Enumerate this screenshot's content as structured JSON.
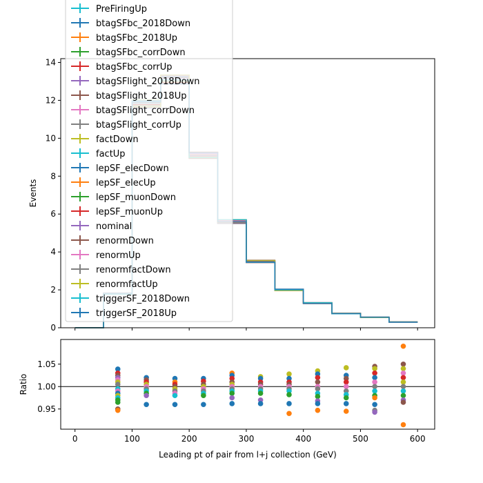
{
  "chart_data": [
    {
      "type": "line",
      "panel": "main",
      "drawstyle": "steps",
      "ylabel": "Events",
      "xlim": [
        -25,
        630
      ],
      "ylim": [
        0,
        14.2
      ],
      "xticks": [
        0,
        100,
        200,
        300,
        400,
        500,
        600
      ],
      "yticks": [
        0,
        2,
        4,
        6,
        8,
        10,
        12,
        14
      ],
      "bin_edges": [
        0,
        50,
        100,
        150,
        200,
        250,
        300,
        350,
        400,
        450,
        500,
        550,
        600
      ],
      "bin_values": [
        0.0,
        1.8,
        11.8,
        13.1,
        9.1,
        5.6,
        3.5,
        2.0,
        1.3,
        0.75,
        0.55,
        0.3
      ],
      "legend_location": "upper-left (extends above axes)",
      "legend": [
        {
          "name": "PreFiringUp",
          "color": "#17becf"
        },
        {
          "name": "btagSFbc_2018Down",
          "color": "#1f77b4"
        },
        {
          "name": "btagSFbc_2018Up",
          "color": "#ff7f0e"
        },
        {
          "name": "btagSFbc_corrDown",
          "color": "#2ca02c"
        },
        {
          "name": "btagSFbc_corrUp",
          "color": "#d62728"
        },
        {
          "name": "btagSFlight_2018Down",
          "color": "#9467bd"
        },
        {
          "name": "btagSFlight_2018Up",
          "color": "#8c564b"
        },
        {
          "name": "btagSFlight_corrDown",
          "color": "#e377c2"
        },
        {
          "name": "btagSFlight_corrUp",
          "color": "#7f7f7f"
        },
        {
          "name": "factDown",
          "color": "#bcbd22"
        },
        {
          "name": "factUp",
          "color": "#17becf"
        },
        {
          "name": "lepSF_elecDown",
          "color": "#1f77b4"
        },
        {
          "name": "lepSF_elecUp",
          "color": "#ff7f0e"
        },
        {
          "name": "lepSF_muonDown",
          "color": "#2ca02c"
        },
        {
          "name": "lepSF_muonUp",
          "color": "#d62728"
        },
        {
          "name": "nominal",
          "color": "#9467bd"
        },
        {
          "name": "renormDown",
          "color": "#8c564b"
        },
        {
          "name": "renormUp",
          "color": "#e377c2"
        },
        {
          "name": "renormfactDown",
          "color": "#7f7f7f"
        },
        {
          "name": "renormfactUp",
          "color": "#bcbd22"
        },
        {
          "name": "triggerSF_2018Down",
          "color": "#17becf"
        },
        {
          "name": "triggerSF_2018Up",
          "color": "#1f77b4"
        }
      ]
    },
    {
      "type": "scatter",
      "panel": "ratio",
      "xlabel": "Leading pt of pair from l+j collection (GeV)",
      "ylabel": "Ratio",
      "xlim": [
        -25,
        630
      ],
      "ylim": [
        0.905,
        1.105
      ],
      "xticks": [
        0,
        100,
        200,
        300,
        400,
        500,
        600
      ],
      "yticks": [
        0.95,
        1.0,
        1.05
      ],
      "ytick_labels": [
        "0.95",
        "1.00",
        "1.05"
      ],
      "reference_line": 1.0,
      "x": [
        75,
        125,
        175,
        225,
        275,
        325,
        375,
        425,
        475,
        525,
        575
      ],
      "points": [
        {
          "x": 75,
          "y": 1.039,
          "color": "#1f77b4"
        },
        {
          "x": 75,
          "y": 1.03,
          "color": "#d62728"
        },
        {
          "x": 75,
          "y": 1.025,
          "color": "#8c564b"
        },
        {
          "x": 75,
          "y": 1.02,
          "color": "#9467bd"
        },
        {
          "x": 75,
          "y": 1.015,
          "color": "#e377c2"
        },
        {
          "x": 75,
          "y": 1.01,
          "color": "#bcbd22"
        },
        {
          "x": 75,
          "y": 1.005,
          "color": "#7f7f7f"
        },
        {
          "x": 75,
          "y": 0.995,
          "color": "#17becf"
        },
        {
          "x": 75,
          "y": 0.99,
          "color": "#e377c2"
        },
        {
          "x": 75,
          "y": 0.985,
          "color": "#1f77b4"
        },
        {
          "x": 75,
          "y": 0.98,
          "color": "#bcbd22"
        },
        {
          "x": 75,
          "y": 0.975,
          "color": "#17becf"
        },
        {
          "x": 75,
          "y": 0.97,
          "color": "#2ca02c"
        },
        {
          "x": 75,
          "y": 0.965,
          "color": "#2ca02c"
        },
        {
          "x": 75,
          "y": 0.95,
          "color": "#8c564b"
        },
        {
          "x": 75,
          "y": 0.947,
          "color": "#ff7f0e"
        },
        {
          "x": 125,
          "y": 1.02,
          "color": "#1f77b4"
        },
        {
          "x": 125,
          "y": 1.015,
          "color": "#8c564b"
        },
        {
          "x": 125,
          "y": 1.01,
          "color": "#d62728"
        },
        {
          "x": 125,
          "y": 1.005,
          "color": "#bcbd22"
        },
        {
          "x": 125,
          "y": 1.0,
          "color": "#e377c2"
        },
        {
          "x": 125,
          "y": 0.995,
          "color": "#7f7f7f"
        },
        {
          "x": 125,
          "y": 0.99,
          "color": "#17becf"
        },
        {
          "x": 125,
          "y": 0.985,
          "color": "#2ca02c"
        },
        {
          "x": 125,
          "y": 0.98,
          "color": "#9467bd"
        },
        {
          "x": 125,
          "y": 0.96,
          "color": "#1f77b4"
        },
        {
          "x": 175,
          "y": 1.018,
          "color": "#1f77b4"
        },
        {
          "x": 175,
          "y": 1.01,
          "color": "#ff7f0e"
        },
        {
          "x": 175,
          "y": 1.005,
          "color": "#d62728"
        },
        {
          "x": 175,
          "y": 1.0,
          "color": "#8c564b"
        },
        {
          "x": 175,
          "y": 0.995,
          "color": "#bcbd22"
        },
        {
          "x": 175,
          "y": 0.99,
          "color": "#7f7f7f"
        },
        {
          "x": 175,
          "y": 0.985,
          "color": "#e377c2"
        },
        {
          "x": 175,
          "y": 0.98,
          "color": "#17becf"
        },
        {
          "x": 175,
          "y": 0.96,
          "color": "#1f77b4"
        },
        {
          "x": 225,
          "y": 1.018,
          "color": "#1f77b4"
        },
        {
          "x": 225,
          "y": 1.012,
          "color": "#d62728"
        },
        {
          "x": 225,
          "y": 1.005,
          "color": "#8c564b"
        },
        {
          "x": 225,
          "y": 1.0,
          "color": "#bcbd22"
        },
        {
          "x": 225,
          "y": 0.995,
          "color": "#e377c2"
        },
        {
          "x": 225,
          "y": 0.99,
          "color": "#7f7f7f"
        },
        {
          "x": 225,
          "y": 0.985,
          "color": "#17becf"
        },
        {
          "x": 225,
          "y": 0.98,
          "color": "#2ca02c"
        },
        {
          "x": 225,
          "y": 0.96,
          "color": "#1f77b4"
        },
        {
          "x": 275,
          "y": 1.03,
          "color": "#ff7f0e"
        },
        {
          "x": 275,
          "y": 1.025,
          "color": "#1f77b4"
        },
        {
          "x": 275,
          "y": 1.018,
          "color": "#d62728"
        },
        {
          "x": 275,
          "y": 1.01,
          "color": "#8c564b"
        },
        {
          "x": 275,
          "y": 1.005,
          "color": "#bcbd22"
        },
        {
          "x": 275,
          "y": 1.0,
          "color": "#e377c2"
        },
        {
          "x": 275,
          "y": 0.995,
          "color": "#7f7f7f"
        },
        {
          "x": 275,
          "y": 0.99,
          "color": "#17becf"
        },
        {
          "x": 275,
          "y": 0.985,
          "color": "#2ca02c"
        },
        {
          "x": 275,
          "y": 0.975,
          "color": "#9467bd"
        },
        {
          "x": 275,
          "y": 0.962,
          "color": "#1f77b4"
        },
        {
          "x": 325,
          "y": 1.022,
          "color": "#bcbd22"
        },
        {
          "x": 325,
          "y": 1.018,
          "color": "#1f77b4"
        },
        {
          "x": 325,
          "y": 1.01,
          "color": "#d62728"
        },
        {
          "x": 325,
          "y": 1.005,
          "color": "#8c564b"
        },
        {
          "x": 325,
          "y": 1.0,
          "color": "#e377c2"
        },
        {
          "x": 325,
          "y": 0.995,
          "color": "#7f7f7f"
        },
        {
          "x": 325,
          "y": 0.99,
          "color": "#17becf"
        },
        {
          "x": 325,
          "y": 0.985,
          "color": "#2ca02c"
        },
        {
          "x": 325,
          "y": 0.97,
          "color": "#9467bd"
        },
        {
          "x": 325,
          "y": 0.962,
          "color": "#1f77b4"
        },
        {
          "x": 375,
          "y": 1.028,
          "color": "#bcbd22"
        },
        {
          "x": 375,
          "y": 1.018,
          "color": "#1f77b4"
        },
        {
          "x": 375,
          "y": 1.01,
          "color": "#d62728"
        },
        {
          "x": 375,
          "y": 1.005,
          "color": "#8c564b"
        },
        {
          "x": 375,
          "y": 1.0,
          "color": "#e377c2"
        },
        {
          "x": 375,
          "y": 0.995,
          "color": "#7f7f7f"
        },
        {
          "x": 375,
          "y": 0.99,
          "color": "#17becf"
        },
        {
          "x": 375,
          "y": 0.982,
          "color": "#2ca02c"
        },
        {
          "x": 375,
          "y": 0.962,
          "color": "#1f77b4"
        },
        {
          "x": 375,
          "y": 0.94,
          "color": "#ff7f0e"
        },
        {
          "x": 425,
          "y": 1.035,
          "color": "#bcbd22"
        },
        {
          "x": 425,
          "y": 1.028,
          "color": "#1f77b4"
        },
        {
          "x": 425,
          "y": 1.02,
          "color": "#d62728"
        },
        {
          "x": 425,
          "y": 1.01,
          "color": "#8c564b"
        },
        {
          "x": 425,
          "y": 1.0,
          "color": "#e377c2"
        },
        {
          "x": 425,
          "y": 0.995,
          "color": "#7f7f7f"
        },
        {
          "x": 425,
          "y": 0.985,
          "color": "#17becf"
        },
        {
          "x": 425,
          "y": 0.978,
          "color": "#2ca02c"
        },
        {
          "x": 425,
          "y": 0.968,
          "color": "#9467bd"
        },
        {
          "x": 425,
          "y": 0.962,
          "color": "#1f77b4"
        },
        {
          "x": 425,
          "y": 0.947,
          "color": "#ff7f0e"
        },
        {
          "x": 475,
          "y": 1.042,
          "color": "#bcbd22"
        },
        {
          "x": 475,
          "y": 1.025,
          "color": "#1f77b4"
        },
        {
          "x": 475,
          "y": 1.018,
          "color": "#8c564b"
        },
        {
          "x": 475,
          "y": 1.01,
          "color": "#d62728"
        },
        {
          "x": 475,
          "y": 1.0,
          "color": "#e377c2"
        },
        {
          "x": 475,
          "y": 0.99,
          "color": "#7f7f7f"
        },
        {
          "x": 475,
          "y": 0.982,
          "color": "#17becf"
        },
        {
          "x": 475,
          "y": 0.975,
          "color": "#2ca02c"
        },
        {
          "x": 475,
          "y": 0.962,
          "color": "#1f77b4"
        },
        {
          "x": 475,
          "y": 0.945,
          "color": "#ff7f0e"
        },
        {
          "x": 525,
          "y": 1.045,
          "color": "#8c564b"
        },
        {
          "x": 525,
          "y": 1.04,
          "color": "#bcbd22"
        },
        {
          "x": 525,
          "y": 1.03,
          "color": "#d62728"
        },
        {
          "x": 525,
          "y": 1.02,
          "color": "#1f77b4"
        },
        {
          "x": 525,
          "y": 1.01,
          "color": "#e377c2"
        },
        {
          "x": 525,
          "y": 1.0,
          "color": "#7f7f7f"
        },
        {
          "x": 525,
          "y": 0.99,
          "color": "#17becf"
        },
        {
          "x": 525,
          "y": 0.98,
          "color": "#2ca02c"
        },
        {
          "x": 525,
          "y": 0.975,
          "color": "#ff7f0e"
        },
        {
          "x": 525,
          "y": 0.96,
          "color": "#1f77b4"
        },
        {
          "x": 525,
          "y": 0.947,
          "color": "#7f7f7f"
        },
        {
          "x": 525,
          "y": 0.943,
          "color": "#9467bd"
        },
        {
          "x": 575,
          "y": 1.09,
          "color": "#ff7f0e"
        },
        {
          "x": 575,
          "y": 1.05,
          "color": "#8c564b"
        },
        {
          "x": 575,
          "y": 1.04,
          "color": "#bcbd22"
        },
        {
          "x": 575,
          "y": 1.03,
          "color": "#e377c2"
        },
        {
          "x": 575,
          "y": 1.02,
          "color": "#d62728"
        },
        {
          "x": 575,
          "y": 1.01,
          "color": "#bcbd22"
        },
        {
          "x": 575,
          "y": 1.0,
          "color": "#7f7f7f"
        },
        {
          "x": 575,
          "y": 0.99,
          "color": "#17becf"
        },
        {
          "x": 575,
          "y": 0.98,
          "color": "#2ca02c"
        },
        {
          "x": 575,
          "y": 0.97,
          "color": "#9467bd"
        },
        {
          "x": 575,
          "y": 0.965,
          "color": "#8c564b"
        },
        {
          "x": 575,
          "y": 0.915,
          "color": "#ff7f0e"
        }
      ]
    }
  ]
}
